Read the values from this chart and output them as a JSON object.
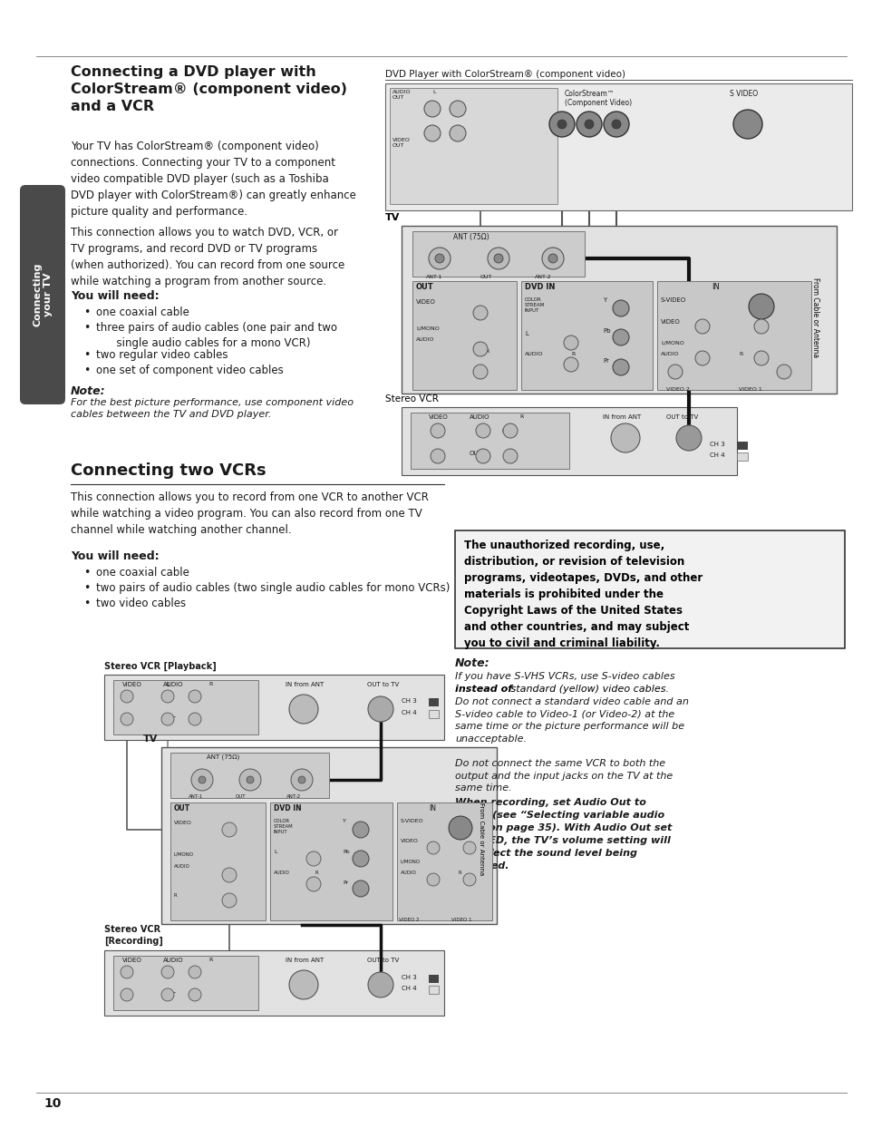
{
  "page_bg": "#ffffff",
  "sidebar_bg": "#4a4a4a",
  "sidebar_text_color": "#ffffff",
  "page_number": "10",
  "section1_title": "Connecting a DVD player with\nColorStream® (component video)\nand a VCR",
  "section1_body1": "Your TV has ColorStream® (component video)\nconnections. Connecting your TV to a component\nvideo compatible DVD player (such as a Toshiba\nDVD player with ColorStream®) can greatly enhance\npicture quality and performance.",
  "section1_body2": "This connection allows you to watch DVD, VCR, or\nTV programs, and record DVD or TV programs\n(when authorized). You can record from one source\nwhile watching a program from another source.",
  "you_will_need_1": "You will need:",
  "bullets_1": [
    "one coaxial cable",
    "three pairs of audio cables (one pair and two\n    single audio cables for a mono VCR)",
    "two regular video cables",
    "one set of component video cables"
  ],
  "note_label_1": "Note:",
  "note_text_1": "For the best picture performance, use component video\ncables between the TV and DVD player.",
  "section2_title": "Connecting two VCRs",
  "section2_body": "This connection allows you to record from one VCR to another VCR\nwhile watching a video program. You can also record from one TV\nchannel while watching another channel.",
  "you_will_need_2": "You will need:",
  "bullets_2": [
    "one coaxial cable",
    "two pairs of audio cables (two single audio cables for mono VCRs)",
    "two video cables"
  ],
  "diagram1_title": "DVD Player with ColorStream® (component video)",
  "diagram1_label_tv": "TV",
  "diagram1_label_vcr": "Stereo VCR",
  "diagram2_label_playback": "Stereo VCR [Playback]",
  "diagram2_label_tv": "TV",
  "diagram2_label_recording": "Stereo VCR\n[Recording]",
  "copyright_box_text": "The unauthorized recording, use,\ndistribution, or revision of television\nprograms, videotapes, DVDs, and other\nmaterials is prohibited under the\nCopyright Laws of the United States\nand other countries, and may subject\nyou to civil and criminal liability.",
  "note2_label": "Note:",
  "note2_line1": "If you have S-VHS VCRs, use S-video cables",
  "note2_bold": "instead of",
  "note2_line2rest": " standard (yellow) video cables.",
  "note2_rest": "Do not connect a standard video cable and an\nS-video cable to Video-1 (or Video-2) at the\nsame time or the picture performance will be\nunacceptable.\n\nDo not connect the same VCR to both the\noutput and the input jacks on the TV at the\nsame time.",
  "warning_text_pre": "When recording, set Audio Out to\nFIXED (see “Selecting variable audio\nOUT” on page 35). With Audio Out set\nto FIXED, the TV’s volume setting will\nnot affect the sound level being\nrecorded."
}
